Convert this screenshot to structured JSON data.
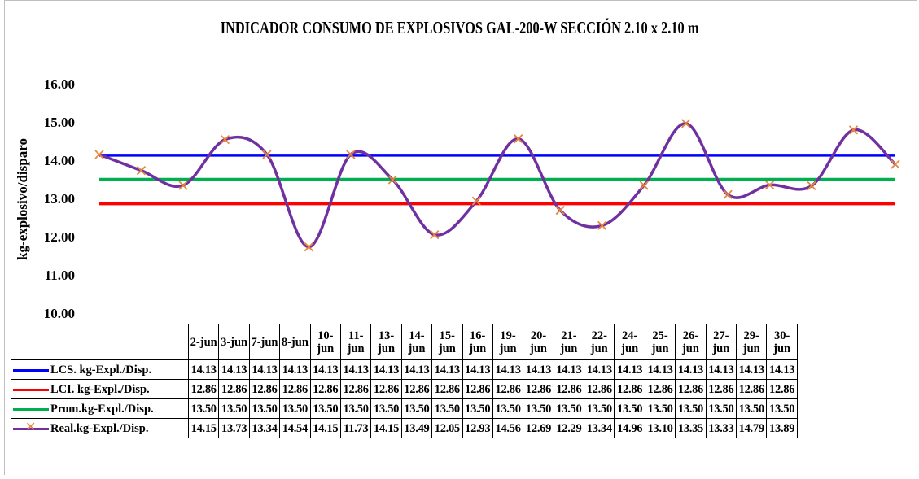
{
  "chart_data": {
    "type": "line",
    "title": "INDICADOR CONSUMO DE EXPLOSIVOS GAL-200-W SECCIÓN 2.10 x 2.10 m",
    "xlabel": "",
    "ylabel": "kg-explosivo/disparo",
    "ylim": [
      10.0,
      16.0
    ],
    "yticks": [
      "10.00",
      "11.00",
      "12.00",
      "13.00",
      "14.00",
      "15.00",
      "16.00"
    ],
    "grid": false,
    "legend": "data-table-below",
    "categories": [
      "2-jun",
      "3-jun",
      "7-jun",
      "8-jun",
      "10-jun",
      "11-jun",
      "13-jun",
      "14-jun",
      "15-jun",
      "16-jun",
      "19-jun",
      "20-jun",
      "21-jun",
      "22-jun",
      "24-jun",
      "25-jun",
      "26-jun",
      "27-jun",
      "29-jun",
      "30-jun"
    ],
    "series": [
      {
        "name": "LCS. kg-Expl./Disp.",
        "color": "#0000ff",
        "values": [
          14.13,
          14.13,
          14.13,
          14.13,
          14.13,
          14.13,
          14.13,
          14.13,
          14.13,
          14.13,
          14.13,
          14.13,
          14.13,
          14.13,
          14.13,
          14.13,
          14.13,
          14.13,
          14.13,
          14.13
        ]
      },
      {
        "name": "LCI. kg-Expl./Disp.",
        "color": "#ff0000",
        "values": [
          12.86,
          12.86,
          12.86,
          12.86,
          12.86,
          12.86,
          12.86,
          12.86,
          12.86,
          12.86,
          12.86,
          12.86,
          12.86,
          12.86,
          12.86,
          12.86,
          12.86,
          12.86,
          12.86,
          12.86
        ]
      },
      {
        "name": "Prom.kg-Expl./Disp.",
        "color": "#00b050",
        "values": [
          13.5,
          13.5,
          13.5,
          13.5,
          13.5,
          13.5,
          13.5,
          13.5,
          13.5,
          13.5,
          13.5,
          13.5,
          13.5,
          13.5,
          13.5,
          13.5,
          13.5,
          13.5,
          13.5,
          13.5
        ]
      },
      {
        "name": "Real.kg-Expl./Disp.",
        "color": "#7030a0",
        "marker_color": "#e8863c",
        "values": [
          14.15,
          13.73,
          13.34,
          14.54,
          14.15,
          11.73,
          14.15,
          13.49,
          12.05,
          12.93,
          14.56,
          12.69,
          12.29,
          13.34,
          14.96,
          13.1,
          13.35,
          13.33,
          14.79,
          13.89
        ]
      }
    ]
  }
}
